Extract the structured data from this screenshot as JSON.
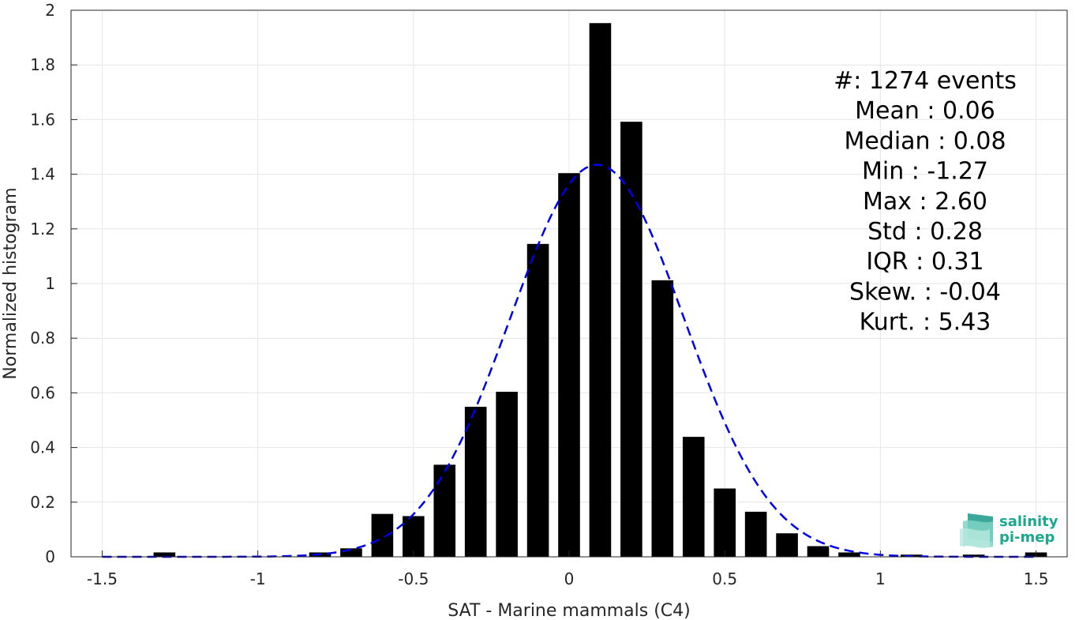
{
  "chart_data": {
    "type": "bar",
    "xlabel": "SAT - Marine mammals (C4)",
    "ylabel": "Normalized histogram",
    "xlim": [
      -1.6,
      1.6
    ],
    "ylim": [
      0,
      2
    ],
    "xticks": [
      -1.5,
      -1,
      -0.5,
      0,
      0.5,
      1,
      1.5
    ],
    "xtick_labels": [
      "-1.5",
      "-1",
      "-0.5",
      "0",
      "0.5",
      "1",
      "1.5"
    ],
    "yticks": [
      0,
      0.2,
      0.4,
      0.6,
      0.8,
      1,
      1.2,
      1.4,
      1.6,
      1.8,
      2
    ],
    "ytick_labels": [
      "0",
      "0.2",
      "0.4",
      "0.6",
      "0.8",
      "1",
      "1.2",
      "1.4",
      "1.6",
      "1.8",
      "2"
    ],
    "grid": true,
    "bin_width": 0.1,
    "bar_width": 0.07,
    "bar_color": "#000000",
    "bars": {
      "x": [
        -1.3,
        -1.2,
        -1.1,
        -1.0,
        -0.9,
        -0.8,
        -0.7,
        -0.6,
        -0.5,
        -0.4,
        -0.3,
        -0.2,
        -0.1,
        0.0,
        0.1,
        0.2,
        0.3,
        0.4,
        0.5,
        0.6,
        0.7,
        0.8,
        0.9,
        1.0,
        1.1,
        1.2,
        1.3,
        1.4,
        1.5
      ],
      "values": [
        0.016,
        0,
        0,
        0,
        0,
        0.016,
        0.031,
        0.157,
        0.149,
        0.337,
        0.549,
        0.604,
        1.145,
        1.404,
        1.953,
        1.592,
        1.012,
        0.439,
        0.25,
        0.165,
        0.086,
        0.039,
        0.016,
        0,
        0.008,
        0,
        0.008,
        0,
        0.016
      ]
    },
    "fit_curve": {
      "style": "dashed",
      "color": "#0000e6",
      "mean": 0.09,
      "std": 0.28,
      "peak": 1.435,
      "x_range": [
        -1.5,
        1.5
      ]
    },
    "stats": [
      {
        "key": "#",
        "sep": ": ",
        "value": "1274 events"
      },
      {
        "key": "Mean",
        "sep": " : ",
        "value": "0.06"
      },
      {
        "key": "Median",
        "sep": " : ",
        "value": "0.08"
      },
      {
        "key": "Min",
        "sep": " : ",
        "value": "-1.27"
      },
      {
        "key": "Max",
        "sep": " : ",
        "value": "2.60"
      },
      {
        "key": "Std",
        "sep": " : ",
        "value": "0.28"
      },
      {
        "key": "IQR",
        "sep": " : ",
        "value": "0.31"
      },
      {
        "key": "Skew.",
        "sep": " : ",
        "value": "-0.04"
      },
      {
        "key": "Kurt.",
        "sep": " : ",
        "value": "5.43"
      }
    ]
  },
  "logo": {
    "line1": "salinity",
    "line2": "pi-mep",
    "color": "#1aa88f"
  }
}
